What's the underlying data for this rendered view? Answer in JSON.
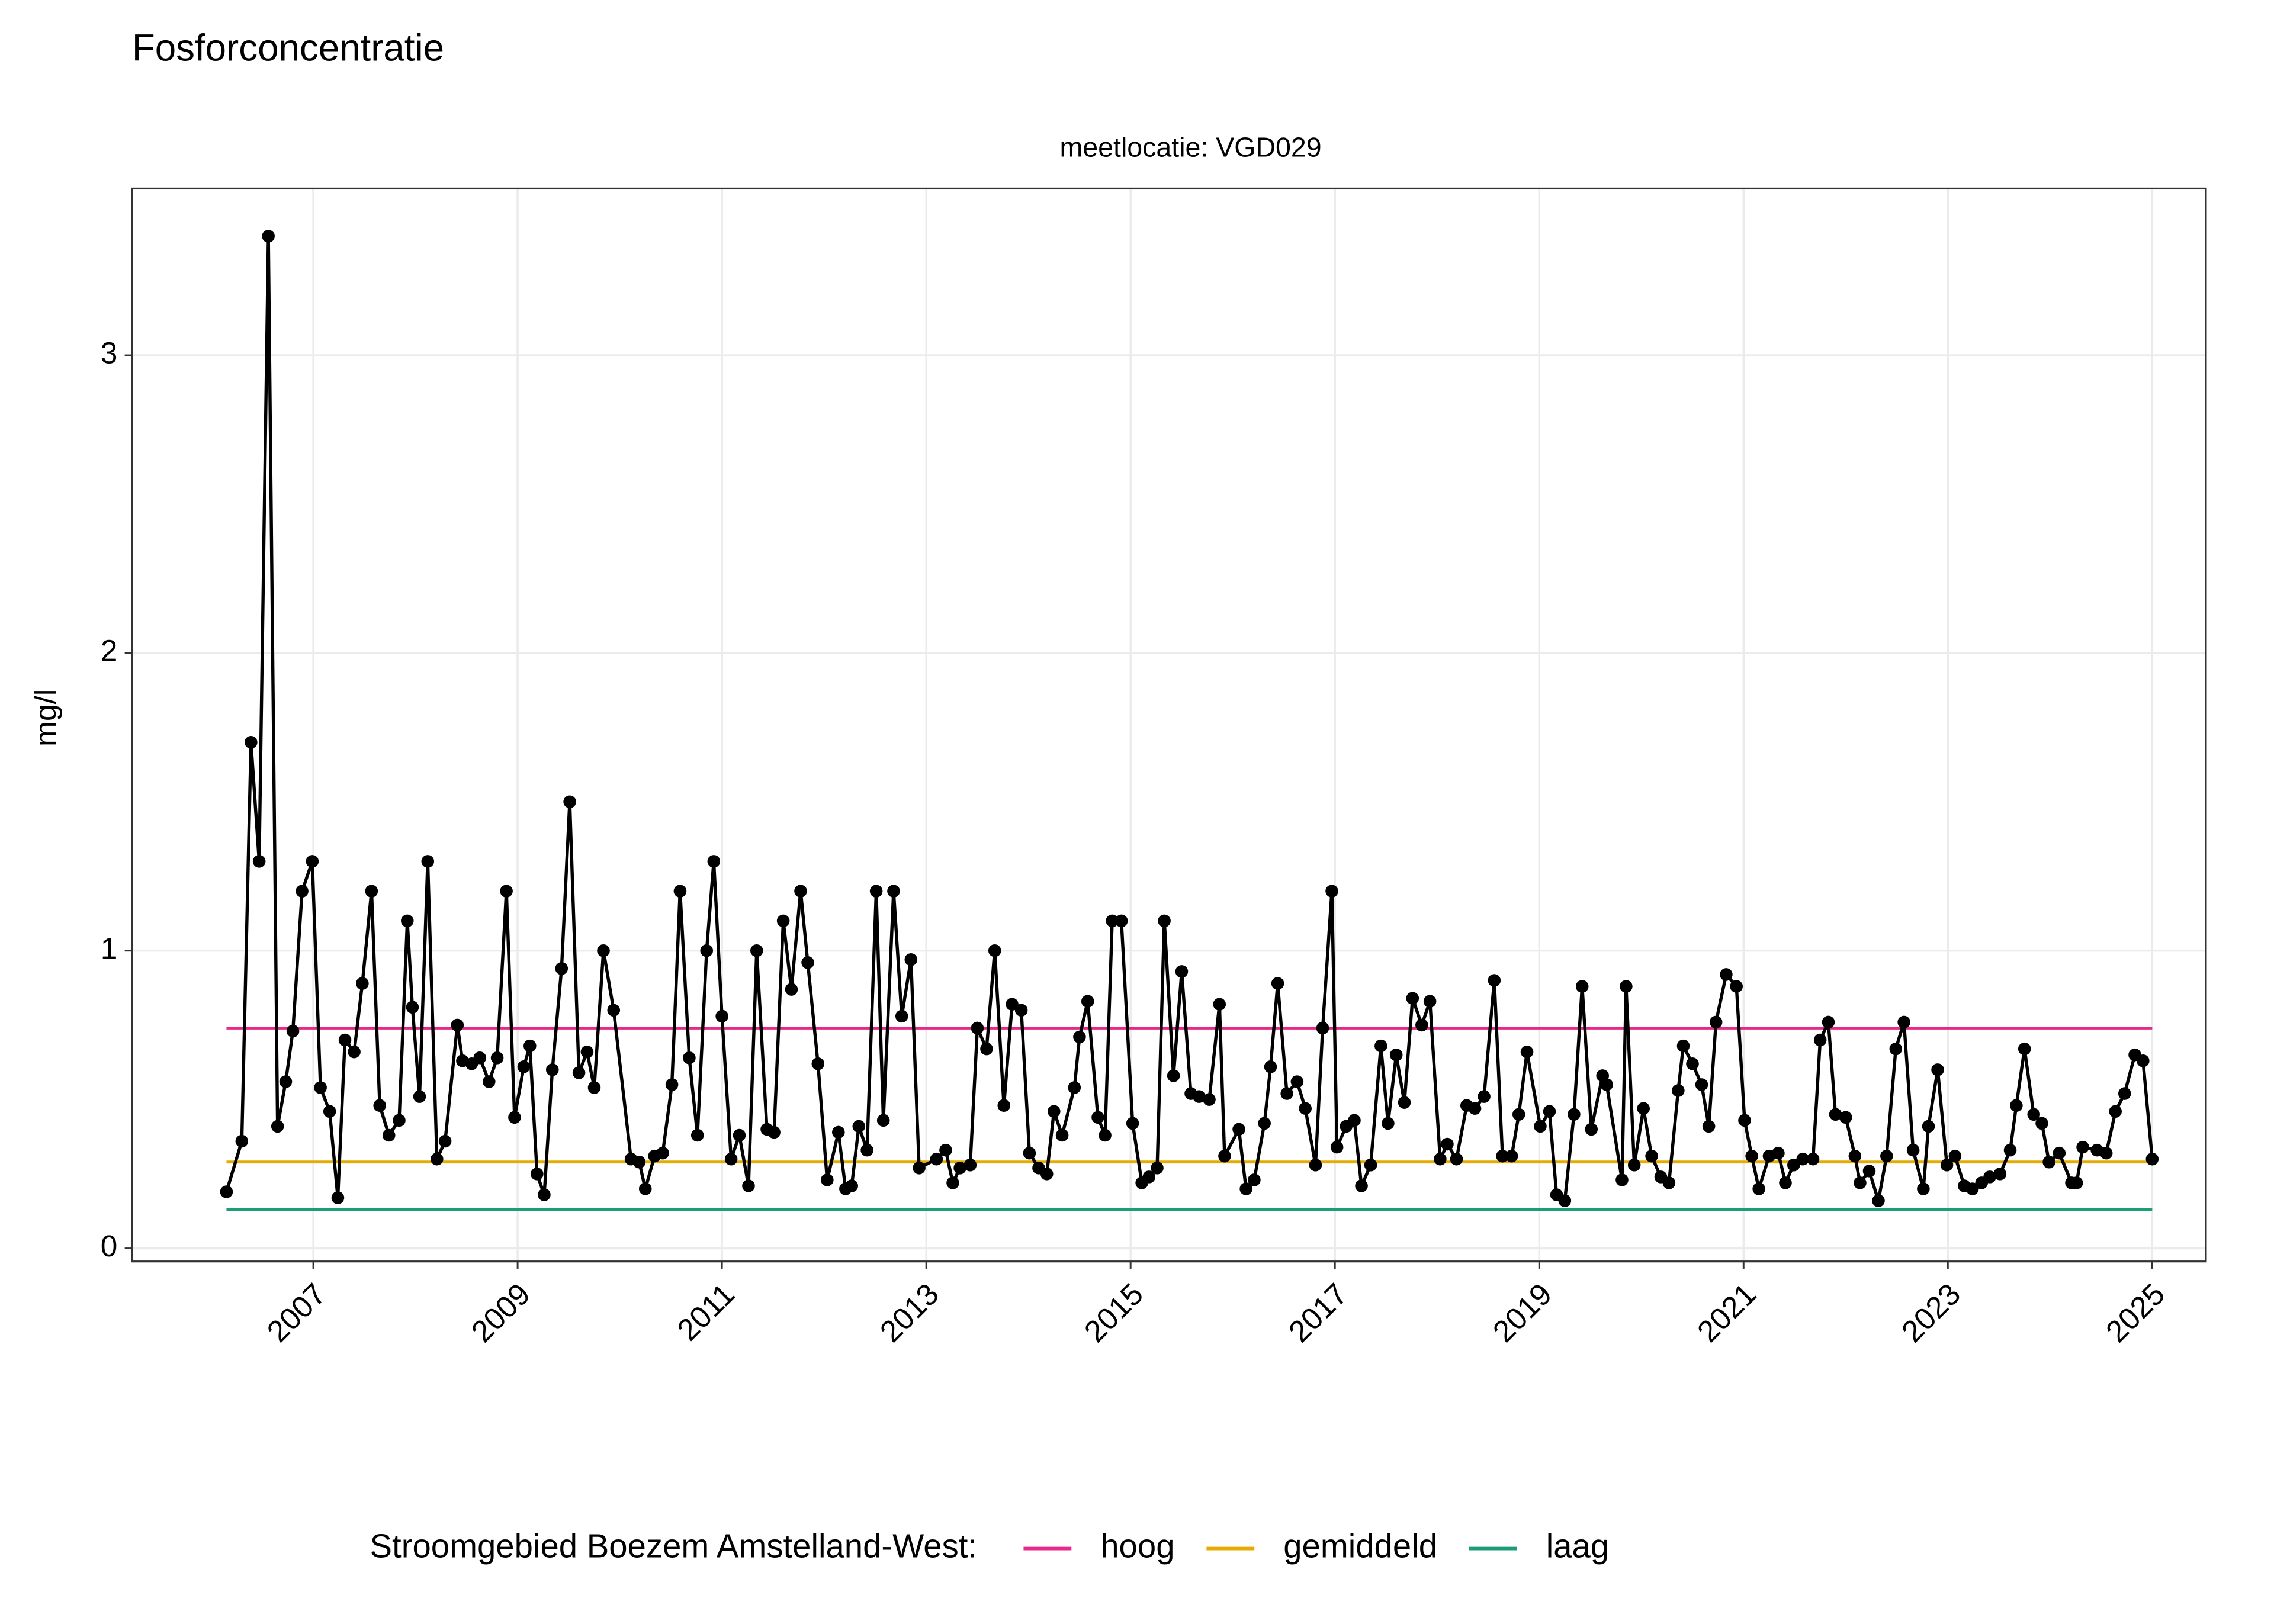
{
  "chart_data": {
    "type": "line",
    "title": "Fosforconcentratie",
    "subtitle": "meetlocatie: VGD029",
    "ylabel": "mg/l",
    "color": "#000000",
    "x": [
      2006.15,
      2006.3,
      2006.39,
      2006.47,
      2006.56,
      2006.65,
      2006.73,
      2006.8,
      2006.89,
      2006.99,
      2007.07,
      2007.16,
      2007.24,
      2007.31,
      2007.4,
      2007.48,
      2007.57,
      2007.65,
      2007.74,
      2007.84,
      2007.92,
      2007.97,
      2008.04,
      2008.12,
      2008.21,
      2008.29,
      2008.41,
      2008.46,
      2008.55,
      2008.63,
      2008.72,
      2008.8,
      2008.89,
      2008.97,
      2009.06,
      2009.12,
      2009.19,
      2009.26,
      2009.34,
      2009.43,
      2009.51,
      2009.6,
      2009.68,
      2009.75,
      2009.84,
      2009.94,
      2010.11,
      2010.19,
      2010.25,
      2010.34,
      2010.42,
      2010.51,
      2010.59,
      2010.68,
      2010.76,
      2010.85,
      2010.92,
      2011.0,
      2011.09,
      2011.17,
      2011.26,
      2011.34,
      2011.44,
      2011.51,
      2011.6,
      2011.68,
      2011.77,
      2011.84,
      2011.94,
      2012.03,
      2012.14,
      2012.21,
      2012.27,
      2012.34,
      2012.42,
      2012.51,
      2012.58,
      2012.68,
      2012.76,
      2012.85,
      2012.93,
      2013.1,
      2013.19,
      2013.26,
      2013.33,
      2013.43,
      2013.5,
      2013.59,
      2013.67,
      2013.76,
      2013.84,
      2013.93,
      2014.01,
      2014.1,
      2014.18,
      2014.25,
      2014.33,
      2014.45,
      2014.5,
      2014.58,
      2014.68,
      2014.75,
      2014.82,
      2014.91,
      2015.02,
      2015.11,
      2015.18,
      2015.26,
      2015.33,
      2015.42,
      2015.5,
      2015.59,
      2015.67,
      2015.77,
      2015.87,
      2015.92,
      2016.06,
      2016.13,
      2016.21,
      2016.31,
      2016.37,
      2016.44,
      2016.53,
      2016.63,
      2016.71,
      2016.81,
      2016.88,
      2016.97,
      2017.02,
      2017.11,
      2017.19,
      2017.26,
      2017.35,
      2017.45,
      2017.52,
      2017.6,
      2017.68,
      2017.76,
      2017.85,
      2017.93,
      2018.03,
      2018.1,
      2018.19,
      2018.29,
      2018.37,
      2018.46,
      2018.56,
      2018.64,
      2018.73,
      2018.8,
      2018.88,
      2019.01,
      2019.1,
      2019.17,
      2019.25,
      2019.34,
      2019.42,
      2019.51,
      2019.62,
      2019.66,
      2019.81,
      2019.85,
      2019.93,
      2020.02,
      2020.1,
      2020.19,
      2020.27,
      2020.36,
      2020.41,
      2020.5,
      2020.59,
      2020.66,
      2020.73,
      2020.83,
      2020.93,
      2021.01,
      2021.08,
      2021.15,
      2021.25,
      2021.34,
      2021.41,
      2021.49,
      2021.58,
      2021.68,
      2021.75,
      2021.83,
      2021.9,
      2022.0,
      2022.09,
      2022.14,
      2022.23,
      2022.32,
      2022.4,
      2022.49,
      2022.57,
      2022.66,
      2022.76,
      2022.81,
      2022.9,
      2022.99,
      2023.07,
      2023.16,
      2023.24,
      2023.33,
      2023.41,
      2023.51,
      2023.61,
      2023.67,
      2023.75,
      2023.84,
      2023.92,
      2023.99,
      2024.09,
      2024.21,
      2024.26,
      2024.32,
      2024.46,
      2024.55,
      2024.64,
      2024.73,
      2024.83,
      2024.91,
      2025.0
    ],
    "values": [
      0.19,
      0.36,
      1.7,
      1.3,
      3.4,
      0.41,
      0.56,
      0.73,
      1.2,
      1.3,
      0.54,
      0.46,
      0.17,
      0.7,
      0.66,
      0.89,
      1.2,
      0.48,
      0.38,
      0.43,
      1.1,
      0.81,
      0.51,
      1.3,
      0.3,
      0.36,
      0.75,
      0.63,
      0.62,
      0.64,
      0.56,
      0.64,
      1.2,
      0.44,
      0.61,
      0.68,
      0.25,
      0.18,
      0.6,
      0.94,
      1.5,
      0.59,
      0.66,
      0.54,
      1.0,
      0.8,
      0.3,
      0.29,
      0.2,
      0.31,
      0.32,
      0.55,
      1.2,
      0.64,
      0.38,
      1.0,
      1.3,
      0.78,
      0.3,
      0.38,
      0.21,
      1.0,
      0.4,
      0.39,
      1.1,
      0.87,
      1.2,
      0.96,
      0.62,
      0.23,
      0.39,
      0.2,
      0.21,
      0.41,
      0.33,
      1.2,
      0.43,
      1.2,
      0.78,
      0.97,
      0.27,
      0.3,
      0.33,
      0.22,
      0.27,
      0.28,
      0.74,
      0.67,
      1.0,
      0.48,
      0.82,
      0.8,
      0.32,
      0.27,
      0.25,
      0.46,
      0.38,
      0.54,
      0.71,
      0.83,
      0.44,
      0.38,
      1.1,
      1.1,
      0.42,
      0.22,
      0.24,
      0.27,
      1.1,
      0.58,
      0.93,
      0.52,
      0.51,
      0.5,
      0.82,
      0.31,
      0.4,
      0.2,
      0.23,
      0.42,
      0.61,
      0.89,
      0.52,
      0.56,
      0.47,
      0.28,
      0.74,
      1.2,
      0.34,
      0.41,
      0.43,
      0.21,
      0.28,
      0.68,
      0.42,
      0.65,
      0.49,
      0.84,
      0.75,
      0.83,
      0.3,
      0.35,
      0.3,
      0.48,
      0.47,
      0.51,
      0.9,
      0.31,
      0.31,
      0.45,
      0.66,
      0.41,
      0.46,
      0.18,
      0.16,
      0.45,
      0.88,
      0.4,
      0.58,
      0.55,
      0.23,
      0.88,
      0.28,
      0.47,
      0.31,
      0.24,
      0.22,
      0.53,
      0.68,
      0.62,
      0.55,
      0.41,
      0.76,
      0.92,
      0.88,
      0.43,
      0.31,
      0.2,
      0.31,
      0.32,
      0.22,
      0.28,
      0.3,
      0.3,
      0.7,
      0.76,
      0.45,
      0.44,
      0.31,
      0.22,
      0.26,
      0.16,
      0.31,
      0.67,
      0.76,
      0.33,
      0.2,
      0.41,
      0.6,
      0.28,
      0.31,
      0.21,
      0.2,
      0.22,
      0.24,
      0.25,
      0.33,
      0.48,
      0.67,
      0.45,
      0.42,
      0.29,
      0.32,
      0.22,
      0.22,
      0.34,
      0.33,
      0.32,
      0.46,
      0.52,
      0.65,
      0.63,
      0.3
    ],
    "series": [
      {
        "name": "hoog",
        "color": "#e7298a",
        "x": [
          2006.15,
          2025.0
        ],
        "values": [
          0.74,
          0.74
        ]
      },
      {
        "name": "gemiddeld",
        "color": "#e6ab02",
        "x": [
          2006.15,
          2025.0
        ],
        "values": [
          0.29,
          0.29
        ]
      },
      {
        "name": "laag",
        "color": "#1b9e77",
        "x": [
          2006.15,
          2025.0
        ],
        "values": [
          0.13,
          0.13
        ]
      }
    ],
    "legend_title": "Stroomgebied Boezem Amstelland-West:",
    "legend": "bottom",
    "grid": true,
    "xlim": [
      2005.225,
      2025.525
    ],
    "xticks": [
      2007,
      2009,
      2011,
      2013,
      2015,
      2017,
      2019,
      2021,
      2023,
      2025
    ],
    "ylim": [
      -0.044,
      3.56
    ],
    "yticks": [
      0,
      1,
      2,
      3
    ]
  }
}
